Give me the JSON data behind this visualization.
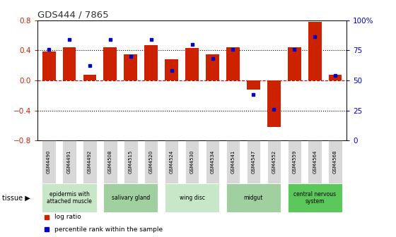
{
  "title": "GDS444 / 7865",
  "samples": [
    "GSM4490",
    "GSM4491",
    "GSM4492",
    "GSM4508",
    "GSM4515",
    "GSM4520",
    "GSM4524",
    "GSM4530",
    "GSM4534",
    "GSM4541",
    "GSM4547",
    "GSM4552",
    "GSM4559",
    "GSM4564",
    "GSM4568"
  ],
  "log_ratios": [
    0.38,
    0.44,
    0.07,
    0.44,
    0.35,
    0.47,
    0.28,
    0.43,
    0.35,
    0.44,
    -0.12,
    -0.62,
    0.44,
    0.78,
    0.07
  ],
  "percentile_ranks": [
    76,
    84,
    62,
    84,
    70,
    84,
    58,
    80,
    68,
    76,
    38,
    26,
    76,
    86,
    54
  ],
  "tissue_groups": [
    {
      "label": "epidermis with\nattached muscle",
      "start": 0,
      "end": 2,
      "color": "#c8e6c8"
    },
    {
      "label": "salivary gland",
      "start": 3,
      "end": 5,
      "color": "#a0d0a0"
    },
    {
      "label": "wing disc",
      "start": 6,
      "end": 8,
      "color": "#c8e6c8"
    },
    {
      "label": "midgut",
      "start": 9,
      "end": 11,
      "color": "#a0d0a0"
    },
    {
      "label": "central nervous\nsystem",
      "start": 12,
      "end": 14,
      "color": "#5cc85c"
    }
  ],
  "bar_color": "#cc2200",
  "dot_color": "#0000cc",
  "ylim": [
    -0.8,
    0.8
  ],
  "right_ylim": [
    0,
    100
  ],
  "right_yticks": [
    0,
    25,
    50,
    75,
    100
  ],
  "right_yticklabels": [
    "0",
    "25",
    "50",
    "75",
    "100%"
  ],
  "left_yticks": [
    -0.8,
    -0.4,
    0.0,
    0.4,
    0.8
  ],
  "dotted_lines_black": [
    -0.4,
    0.4
  ],
  "zero_line_color": "#cc0000",
  "background_color": "#ffffff",
  "title_color": "#333333",
  "left_tick_color": "#cc2200",
  "right_tick_color": "#0000cc",
  "legend_items": [
    {
      "label": "log ratio",
      "color": "#cc2200"
    },
    {
      "label": "percentile rank within the sample",
      "color": "#0000cc"
    }
  ],
  "sample_box_color": "#d8d8d8",
  "bar_width": 0.65
}
